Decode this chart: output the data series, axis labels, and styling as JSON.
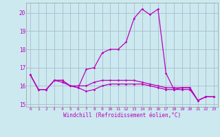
{
  "xlabel": "Windchill (Refroidissement éolien,°C)",
  "xlim": [
    -0.5,
    23.5
  ],
  "ylim": [
    14.85,
    20.55
  ],
  "yticks": [
    15,
    16,
    17,
    18,
    19,
    20
  ],
  "xticks": [
    0,
    1,
    2,
    3,
    4,
    5,
    6,
    7,
    8,
    9,
    10,
    11,
    12,
    13,
    14,
    15,
    16,
    17,
    18,
    19,
    20,
    21,
    22,
    23
  ],
  "background_color": "#cce9f0",
  "grid_color": "#aabbcc",
  "line_color": "#bb00bb",
  "line1": [
    16.6,
    15.8,
    15.8,
    16.3,
    16.3,
    16.0,
    15.9,
    16.9,
    17.0,
    17.8,
    18.0,
    18.0,
    18.4,
    19.7,
    20.2,
    19.9,
    20.2,
    16.7,
    15.8,
    15.9,
    15.9,
    15.2,
    15.4,
    15.4
  ],
  "line2": [
    16.6,
    15.8,
    15.8,
    16.3,
    16.2,
    16.0,
    15.9,
    15.7,
    15.8,
    16.0,
    16.1,
    16.1,
    16.1,
    16.1,
    16.1,
    16.0,
    15.9,
    15.8,
    15.8,
    15.8,
    15.8,
    15.2,
    15.4,
    15.4
  ],
  "line3": [
    16.6,
    15.8,
    15.8,
    16.3,
    16.3,
    16.0,
    16.0,
    16.0,
    16.2,
    16.3,
    16.3,
    16.3,
    16.3,
    16.3,
    16.2,
    16.1,
    16.0,
    15.9,
    15.9,
    15.9,
    15.9,
    15.2,
    15.4,
    15.4
  ]
}
